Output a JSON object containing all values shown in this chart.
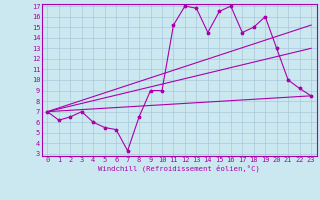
{
  "xlabel": "Windchill (Refroidissement éolien,°C)",
  "bg_color": "#cbe8f0",
  "grid_color": "#aac8d8",
  "line_color": "#aa00aa",
  "spine_color": "#aa00aa",
  "xlim": [
    -0.5,
    23.5
  ],
  "ylim": [
    2.8,
    17.2
  ],
  "xticks": [
    0,
    1,
    2,
    3,
    4,
    5,
    6,
    7,
    8,
    9,
    10,
    11,
    12,
    13,
    14,
    15,
    16,
    17,
    18,
    19,
    20,
    21,
    22,
    23
  ],
  "yticks": [
    3,
    4,
    5,
    6,
    7,
    8,
    9,
    10,
    11,
    12,
    13,
    14,
    15,
    16,
    17
  ],
  "line1_x": [
    0,
    1,
    2,
    3,
    4,
    5,
    6,
    7,
    8,
    9,
    10,
    11,
    12,
    13,
    14,
    15,
    16,
    17,
    18,
    19,
    20,
    21,
    22,
    23
  ],
  "line1_y": [
    7.0,
    6.2,
    6.5,
    7.0,
    6.0,
    5.5,
    5.3,
    3.3,
    6.5,
    9.0,
    9.0,
    15.2,
    17.0,
    16.8,
    14.5,
    16.5,
    17.0,
    14.5,
    15.0,
    16.0,
    13.0,
    10.0,
    9.2,
    8.5
  ],
  "line2_x": [
    0,
    23
  ],
  "line2_y": [
    7.0,
    15.2
  ],
  "line3_x": [
    0,
    23
  ],
  "line3_y": [
    7.0,
    13.0
  ],
  "line4_x": [
    0,
    23
  ],
  "line4_y": [
    7.0,
    8.5
  ],
  "tick_fontsize": 5.0,
  "xlabel_fontsize": 5.2,
  "marker_size": 2.5
}
